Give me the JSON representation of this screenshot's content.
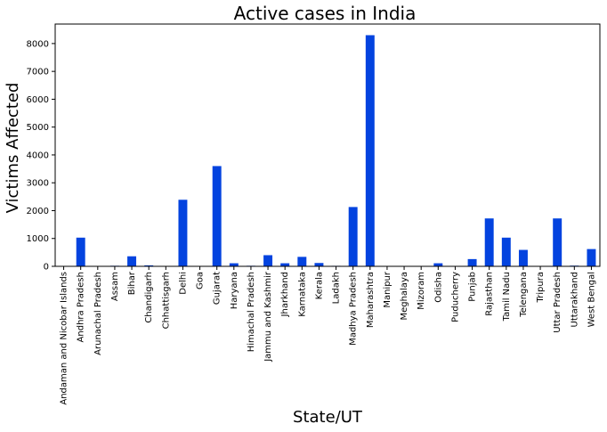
{
  "chart_data": {
    "type": "bar",
    "title": "Active cases in India",
    "xlabel": "State/UT",
    "ylabel": "Victims Affected",
    "ylim": [
      0,
      8700
    ],
    "yticks": [
      0,
      1000,
      2000,
      3000,
      4000,
      5000,
      6000,
      7000,
      8000
    ],
    "grid": false,
    "bar_color": "#0343df",
    "categories": [
      "Andaman and Nicobar Islands",
      "Andhra Pradesh",
      "Arunachal Pradesh",
      "Assam",
      "Bihar",
      "Chandigarh",
      "Chhattisgarh",
      "Delhi",
      "Goa",
      "Gujarat",
      "Haryana",
      "Himachal Pradesh",
      "Jammu and Kashmir",
      "Jharkhand",
      "Karnataka",
      "Kerala",
      "Ladakh",
      "Madhya Pradesh",
      "Maharashtra",
      "Manipur",
      "Meghalaya",
      "Mizoram",
      "Odisha",
      "Puducherry",
      "Punjab",
      "Rajasthan",
      "Tamil Nadu",
      "Telengana",
      "Tripura",
      "Uttar Pradesh",
      "Uttarakhand",
      "West Bengal"
    ],
    "values": [
      11,
      1030,
      1,
      20,
      360,
      35,
      15,
      2390,
      2,
      3600,
      110,
      20,
      400,
      110,
      340,
      120,
      18,
      2130,
      8300,
      1,
      11,
      1,
      110,
      4,
      260,
      1720,
      1030,
      590,
      2,
      1720,
      25,
      620
    ]
  }
}
